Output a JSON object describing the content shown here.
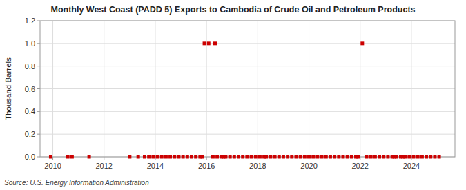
{
  "chart_data": {
    "type": "scatter",
    "title": "Monthly West Coast (PADD 5) Exports to Cambodia of Crude Oil and Petroleum Products",
    "y_label": "Thousand Barrels",
    "source": "Source: U.S. Energy Information Administration",
    "color": "#cc0000",
    "marker": "square",
    "grid": true,
    "xlim": [
      2009.5,
      2025.7
    ],
    "xticks": [
      2010,
      2012,
      2014,
      2016,
      2018,
      2020,
      2022,
      2024
    ],
    "ylim": [
      0.0,
      1.2
    ],
    "yticks": [
      {
        "value": 0.0,
        "label": "0.0"
      },
      0.2,
      0.4,
      0.6,
      0.8,
      {
        "value": 1.0,
        "label": "1.0"
      },
      1.2
    ],
    "x": [
      2009.917,
      2010.583,
      2010.75,
      2011.417,
      2013.0,
      2013.333,
      2013.583,
      2013.75,
      2013.917,
      2014.083,
      2014.25,
      2014.417,
      2014.583,
      2014.75,
      2014.917,
      2015.083,
      2015.25,
      2015.417,
      2015.583,
      2015.75,
      2015.833,
      2015.917,
      2016.083,
      2016.25,
      2016.333,
      2016.417,
      2016.583,
      2016.667,
      2016.75,
      2016.917,
      2017.083,
      2017.25,
      2017.417,
      2017.583,
      2017.75,
      2017.917,
      2018.083,
      2018.25,
      2018.333,
      2018.5,
      2018.667,
      2018.833,
      2019.0,
      2019.167,
      2019.333,
      2019.5,
      2019.667,
      2019.833,
      2020.0,
      2020.167,
      2020.333,
      2020.5,
      2020.667,
      2020.833,
      2021.0,
      2021.167,
      2021.333,
      2021.5,
      2021.667,
      2021.833,
      2021.917,
      2022.083,
      2022.25,
      2022.417,
      2022.583,
      2022.75,
      2022.917,
      2023.083,
      2023.25,
      2023.333,
      2023.417,
      2023.583,
      2023.667,
      2023.75,
      2023.917,
      2024.083,
      2024.25,
      2024.417,
      2024.583,
      2024.75,
      2024.917,
      2025.083
    ],
    "values": [
      0.0,
      0.0,
      0.0,
      0.0,
      0.0,
      0.0,
      0.0,
      0.0,
      0.0,
      0.0,
      0.0,
      0.0,
      0.0,
      0.0,
      0.0,
      0.0,
      0.0,
      0.0,
      0.0,
      0.0,
      0.0,
      1.0,
      1.0,
      0.0,
      1.0,
      0.0,
      0.0,
      0.0,
      0.0,
      0.0,
      0.0,
      0.0,
      0.0,
      0.0,
      0.0,
      0.0,
      0.0,
      0.0,
      0.0,
      0.0,
      0.0,
      0.0,
      0.0,
      0.0,
      0.0,
      0.0,
      0.0,
      0.0,
      0.0,
      0.0,
      0.0,
      0.0,
      0.0,
      0.0,
      0.0,
      0.0,
      0.0,
      0.0,
      0.0,
      0.0,
      0.0,
      1.0,
      0.0,
      0.0,
      0.0,
      0.0,
      0.0,
      0.0,
      0.0,
      0.0,
      0.0,
      0.0,
      0.0,
      0.0,
      0.0,
      0.0,
      0.0,
      0.0,
      0.0,
      0.0,
      0.0,
      0.0
    ]
  }
}
